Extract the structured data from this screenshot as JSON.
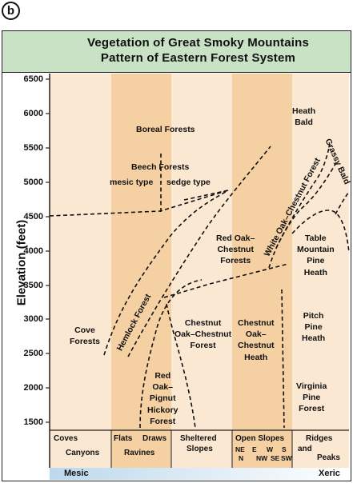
{
  "panel_letter": "b",
  "title": {
    "line1": "Vegetation of Great Smoky Mountains",
    "line2": "Pattern of Eastern Forest System"
  },
  "y_axis": {
    "title": "Elevation (feet)",
    "ticks": [
      "6500",
      "6000",
      "5500",
      "5000",
      "4500",
      "4000",
      "3500",
      "3000",
      "2500",
      "2000",
      "1500"
    ]
  },
  "zones": {
    "boreal": "Boreal Forests",
    "beech": "Beech Forests",
    "mesic_type": "mesic type",
    "sedge_type": "sedge type",
    "heath_bald": [
      "Heath",
      "Bald"
    ],
    "grassy_bald": "Grassy Bald",
    "white_oak": "White Oak–Chestnut Forest",
    "red_oak_chestnut": [
      "Red Oak–",
      "Chestnut",
      "Forests"
    ],
    "table_mountain": [
      "Table",
      "Mountain",
      "Pine",
      "Heath"
    ],
    "hemlock": "Hemlock Forest",
    "cove": [
      "Cove",
      "Forests"
    ],
    "chestnut_oak": [
      "Chestnut",
      "Oak–Chestnut",
      "Forest"
    ],
    "chestnut_oak_heath": [
      "Chestnut",
      "Oak–",
      "Chestnut",
      "Heath"
    ],
    "pitch_pine": [
      "Pitch",
      "Pine",
      "Heath"
    ],
    "red_oak_pignut": [
      "Red",
      "Oak–",
      "Pignut",
      "Hickory",
      "Forest"
    ],
    "virginia_pine": [
      "Virginia",
      "Pine",
      "Forest"
    ]
  },
  "topography": {
    "coves": "Coves",
    "canyons": "Canyons",
    "flats": "Flats",
    "draws": "Draws",
    "ravines": "Ravines",
    "sheltered": "Sheltered",
    "slopes": "Slopes",
    "open_slopes": "Open Slopes",
    "aspects_row1": [
      "NE",
      "E",
      "W",
      "S"
    ],
    "aspects_row2": [
      "N",
      "NW",
      "SE",
      "SW"
    ],
    "ridges": "Ridges",
    "and": "and",
    "peaks": "Peaks"
  },
  "moisture": {
    "left": "Mesic",
    "right": "Xeric"
  },
  "colors": {
    "light_band": "#fbe8d2",
    "dark_band": "#f4d0a3",
    "title_bg": "#c9e2c6",
    "gradient_left": "#bcd8ec"
  }
}
